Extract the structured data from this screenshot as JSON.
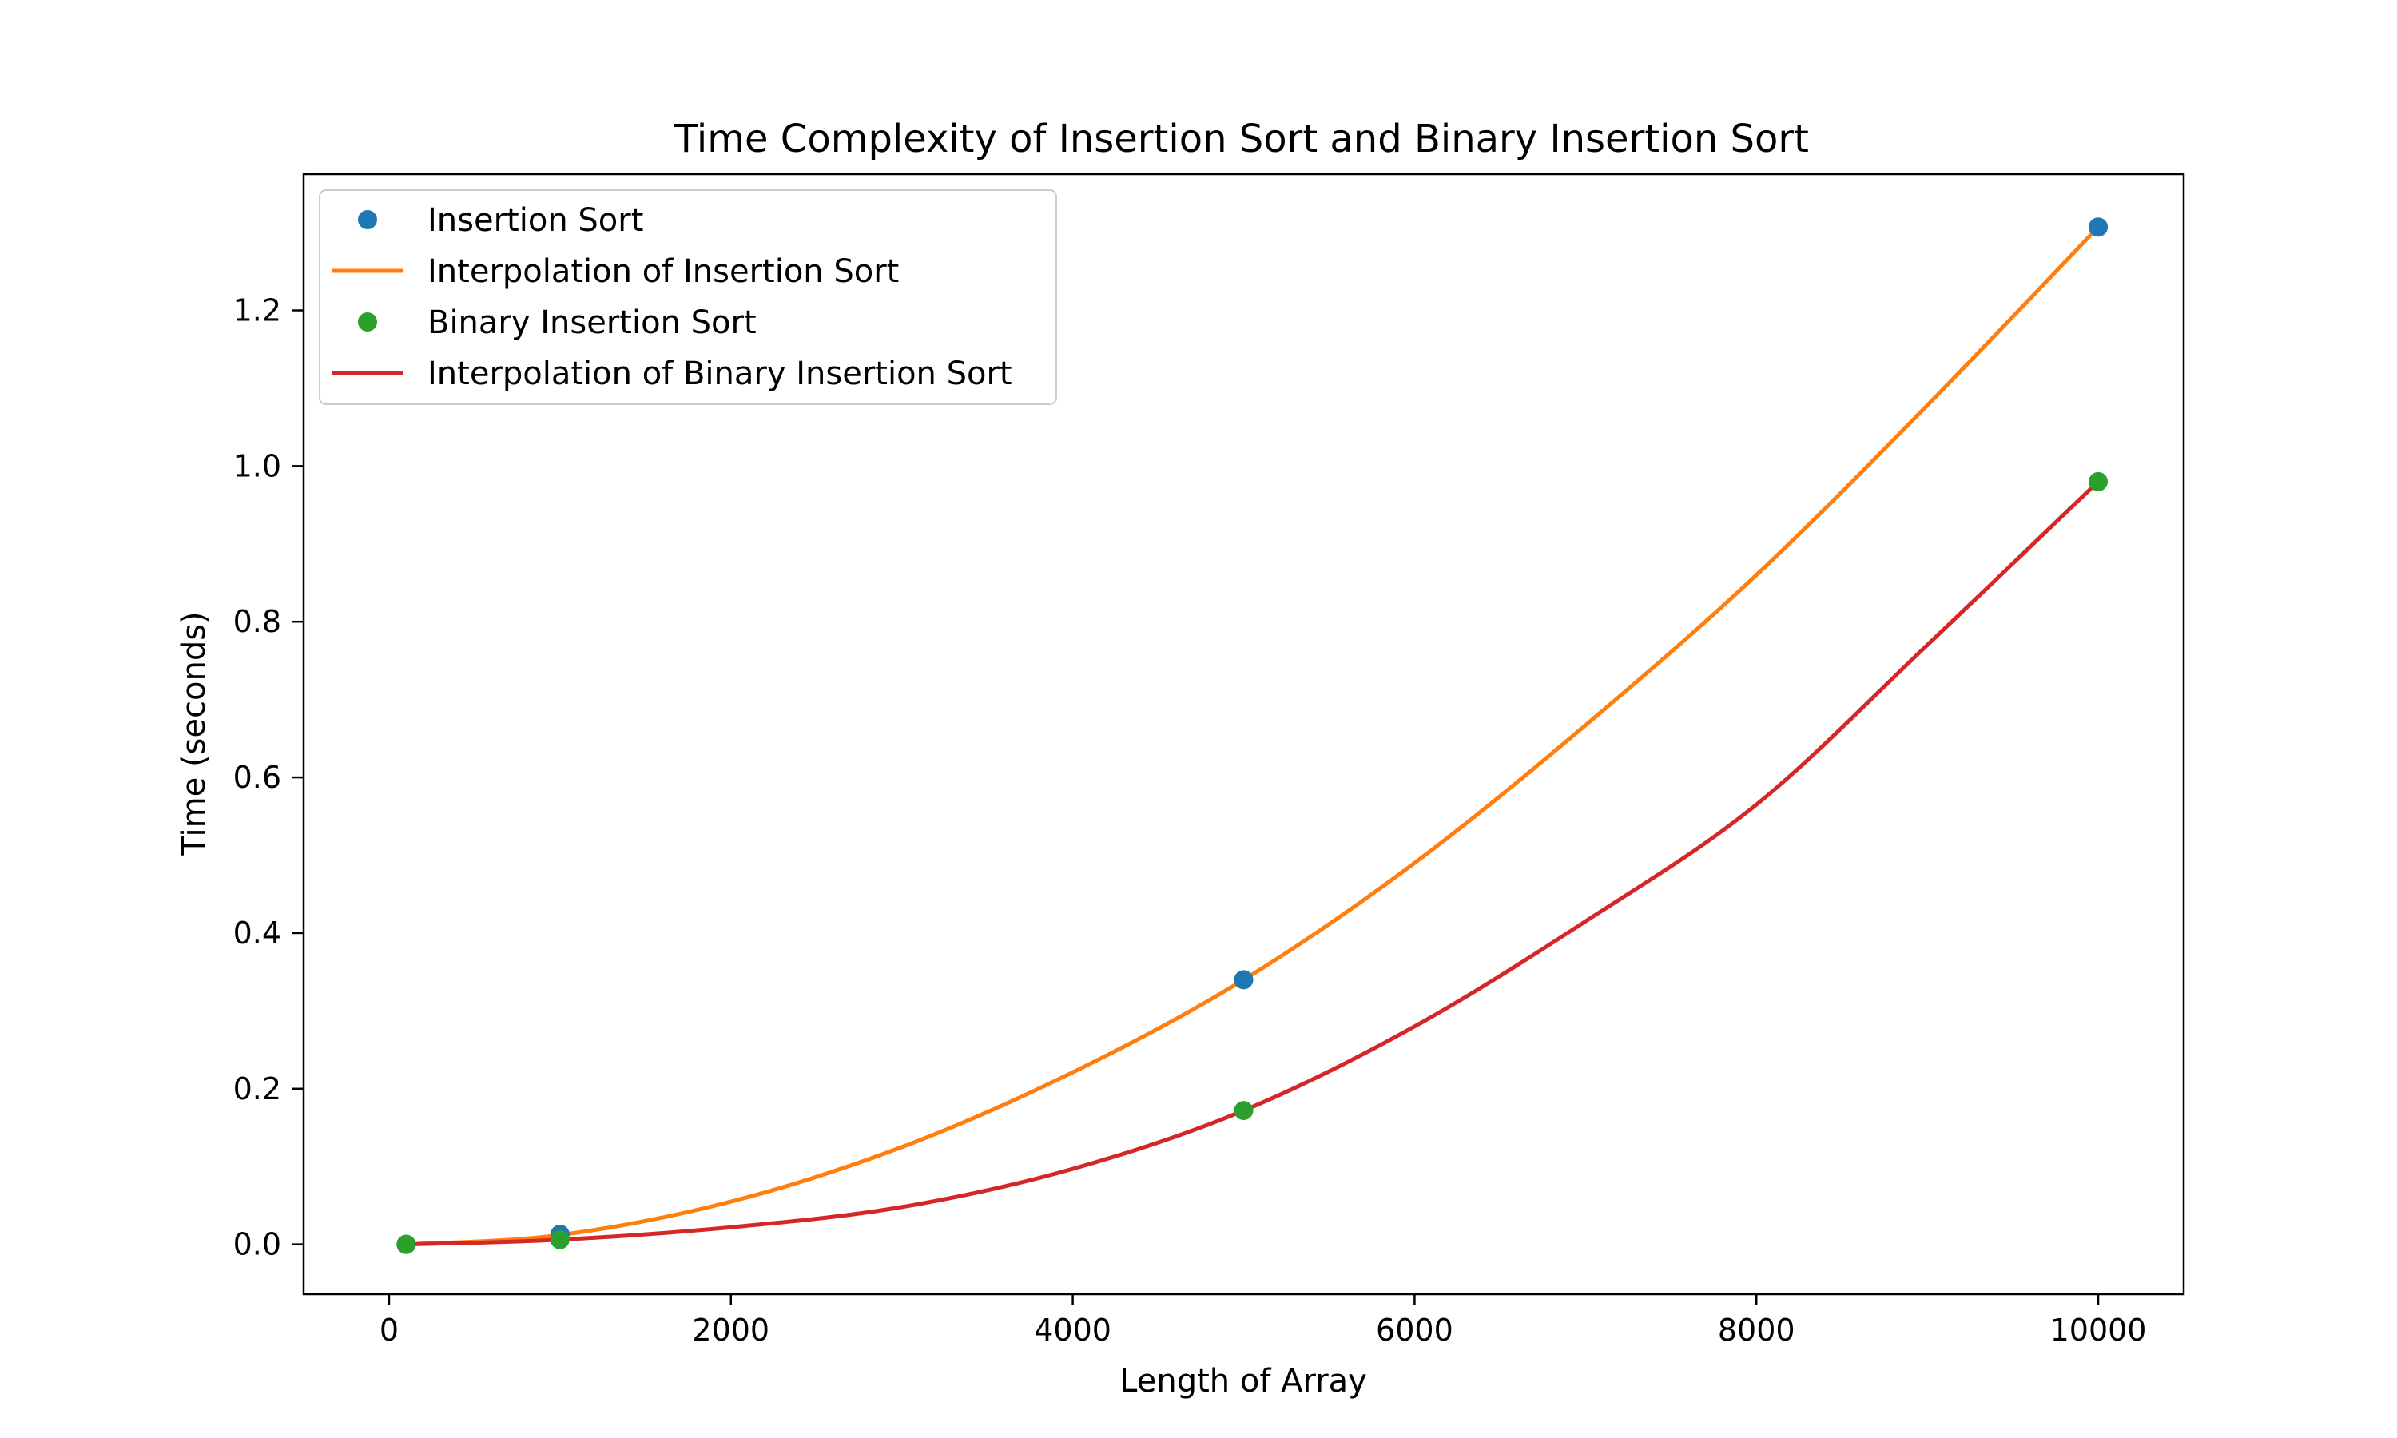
{
  "chart_data": {
    "type": "line",
    "title": "Time Complexity of Insertion Sort and Binary Insertion Sort",
    "xlabel": "Length of Array",
    "ylabel": "Time (seconds)",
    "xlim": [
      -500,
      10500
    ],
    "ylim": [
      -0.064,
      1.375
    ],
    "x_ticks": [
      0,
      2000,
      4000,
      6000,
      8000,
      10000
    ],
    "y_ticks": [
      0.0,
      0.2,
      0.4,
      0.6,
      0.8,
      1.0,
      1.2
    ],
    "x_tick_labels": [
      "0",
      "2000",
      "4000",
      "6000",
      "8000",
      "10000"
    ],
    "y_tick_labels": [
      "0.0",
      "0.2",
      "0.4",
      "0.6",
      "0.8",
      "1.0",
      "1.2"
    ],
    "grid": false,
    "legend_position": "top-left",
    "series": [
      {
        "name": "Insertion Sort",
        "kind": "scatter",
        "color": "#1f77b4",
        "x": [
          100,
          1000,
          5000,
          10000
        ],
        "y": [
          0.0,
          0.013,
          0.34,
          1.307
        ]
      },
      {
        "name": "Interpolation of Insertion Sort",
        "kind": "line",
        "color": "#ff7f0e",
        "x": [
          100,
          1000,
          2000,
          3000,
          4000,
          5000,
          6000,
          7000,
          8000,
          9000,
          10000
        ],
        "y": [
          0.0,
          0.012,
          0.055,
          0.125,
          0.221,
          0.34,
          0.49,
          0.667,
          0.86,
          1.078,
          1.307
        ]
      },
      {
        "name": "Binary Insertion Sort",
        "kind": "scatter",
        "color": "#2ca02c",
        "x": [
          100,
          1000,
          5000,
          10000
        ],
        "y": [
          0.0,
          0.006,
          0.172,
          0.98
        ]
      },
      {
        "name": "Interpolation of Binary Insertion Sort",
        "kind": "line",
        "color": "#d62728",
        "x": [
          100,
          1000,
          2000,
          3000,
          4000,
          5000,
          6000,
          7000,
          8000,
          9000,
          10000
        ],
        "y": [
          0.0,
          0.006,
          0.022,
          0.048,
          0.097,
          0.172,
          0.28,
          0.415,
          0.565,
          0.77,
          0.98
        ]
      }
    ]
  }
}
